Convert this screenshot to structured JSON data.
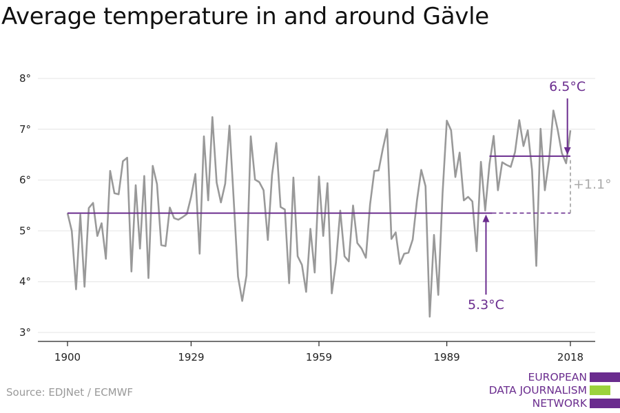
{
  "title": "Average temperature in and around Gävle",
  "source": "Source: EDJNet / ECMWF",
  "logo": {
    "lines": [
      "EUROPEAN",
      "DATA JOURNALISM",
      "NETWORK"
    ],
    "colors": [
      "#6a2c8e",
      "#9bd33c",
      "#6a2c8e"
    ]
  },
  "chart_data": {
    "type": "line",
    "title": "Average temperature in and around Gävle",
    "xlabel": "",
    "ylabel": "",
    "x_ticks": [
      "1900",
      "1929",
      "1959",
      "1989",
      "2018"
    ],
    "y_ticks": [
      "3°",
      "4°",
      "5°",
      "6°",
      "7°",
      "8°"
    ],
    "xlim": [
      1900,
      2018
    ],
    "ylim": [
      3,
      8
    ],
    "grid": "horizontal",
    "series": [
      {
        "color": "#999999",
        "x": [
          1900,
          1901,
          1902,
          1903,
          1904,
          1905,
          1906,
          1907,
          1908,
          1909,
          1910,
          1911,
          1912,
          1913,
          1914,
          1915,
          1916,
          1917,
          1918,
          1919,
          1920,
          1921,
          1922,
          1923,
          1924,
          1925,
          1926,
          1927,
          1928,
          1929,
          1930,
          1931,
          1932,
          1933,
          1934,
          1935,
          1936,
          1937,
          1938,
          1939,
          1940,
          1941,
          1942,
          1943,
          1944,
          1945,
          1946,
          1947,
          1948,
          1949,
          1950,
          1951,
          1952,
          1953,
          1954,
          1955,
          1956,
          1957,
          1958,
          1959,
          1960,
          1961,
          1962,
          1963,
          1964,
          1965,
          1966,
          1967,
          1968,
          1969,
          1970,
          1971,
          1972,
          1973,
          1974,
          1975,
          1976,
          1977,
          1978,
          1979,
          1980,
          1981,
          1982,
          1983,
          1984,
          1985,
          1986,
          1987,
          1988,
          1989,
          1990,
          1991,
          1992,
          1993,
          1994,
          1995,
          1996,
          1997,
          1998,
          1999,
          2000,
          2001,
          2002,
          2003,
          2004,
          2005,
          2006,
          2007,
          2008,
          2009,
          2010,
          2011,
          2012,
          2013,
          2014,
          2015,
          2016,
          2017,
          2018
        ],
        "values": [
          5.35,
          5.0,
          3.85,
          5.32,
          3.9,
          5.45,
          5.55,
          4.9,
          5.15,
          4.45,
          6.18,
          5.74,
          5.72,
          6.37,
          6.44,
          4.2,
          5.9,
          4.65,
          6.08,
          4.07,
          6.28,
          5.92,
          4.72,
          4.7,
          5.46,
          5.25,
          5.22,
          5.27,
          5.33,
          5.67,
          6.12,
          4.55,
          6.86,
          5.6,
          7.24,
          5.95,
          5.56,
          5.93,
          7.07,
          5.6,
          4.1,
          3.62,
          4.12,
          6.86,
          6.01,
          5.96,
          5.8,
          4.82,
          6.1,
          6.73,
          5.47,
          5.42,
          3.97,
          6.05,
          4.5,
          4.33,
          3.8,
          5.04,
          4.18,
          6.07,
          4.9,
          5.94,
          3.77,
          4.38,
          5.4,
          4.5,
          4.4,
          5.5,
          4.76,
          4.65,
          4.47,
          5.52,
          6.18,
          6.19,
          6.62,
          7.0,
          4.84,
          4.97,
          4.35,
          4.55,
          4.57,
          4.83,
          5.6,
          6.2,
          5.88,
          3.31,
          4.92,
          3.74,
          5.73,
          7.17,
          6.98,
          6.06,
          6.54,
          5.6,
          5.67,
          5.58,
          4.6,
          6.36,
          5.4,
          6.31,
          6.87,
          5.8,
          6.35,
          6.3,
          6.26,
          6.55,
          7.18,
          6.67,
          6.98,
          6.2,
          4.31,
          7.01,
          5.8,
          6.4,
          7.37,
          7.0,
          6.53,
          6.33,
          6.98
        ]
      }
    ],
    "reference_lines": [
      {
        "color": "#6a2c8e",
        "value": 5.35,
        "x_from": 1900,
        "x_to": 2018,
        "solid_until": 1999,
        "label": "5.3°C"
      },
      {
        "color": "#6a2c8e",
        "value": 6.47,
        "x_from": 1999,
        "x_to": 2018,
        "label": "6.5°C"
      }
    ],
    "difference_label": "+1.1°",
    "difference_color": "#aaaaaa"
  }
}
